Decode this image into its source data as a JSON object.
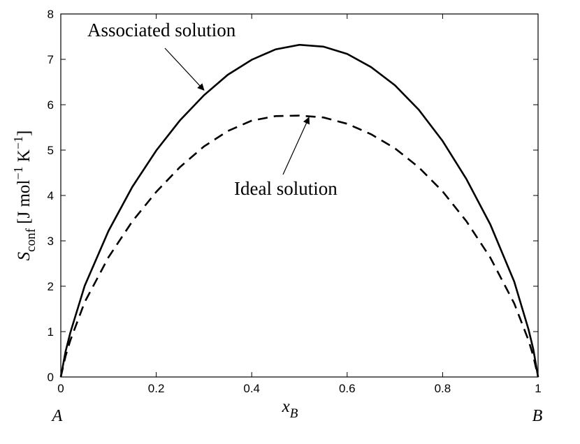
{
  "chart_data": {
    "type": "line",
    "xlabel": {
      "main": "x",
      "sub": "B"
    },
    "ylabel": {
      "main": "S",
      "sub": "conf",
      "unit_open": " [J mol",
      "sup1": "−1",
      "unit_mid": " K",
      "sup2": "−1",
      "unit_close": "]"
    },
    "xlim": [
      0,
      1
    ],
    "ylim": [
      0,
      8
    ],
    "x_ticks": [
      0,
      0.2,
      0.4,
      0.6,
      0.8,
      1
    ],
    "x_tick_labels": [
      "0",
      "0.2",
      "0.4",
      "0.6",
      "0.8",
      "1"
    ],
    "y_ticks": [
      0,
      1,
      2,
      3,
      4,
      5,
      6,
      7,
      8
    ],
    "y_tick_labels": [
      "0",
      "1",
      "2",
      "3",
      "4",
      "5",
      "6",
      "7",
      "8"
    ],
    "grid": false,
    "corner_labels": {
      "left": "A",
      "right": "B"
    },
    "series": [
      {
        "name": "Associated solution",
        "style": "solid",
        "x": [
          0,
          0.01,
          0.02,
          0.05,
          0.1,
          0.15,
          0.2,
          0.25,
          0.3,
          0.35,
          0.4,
          0.45,
          0.5,
          0.55,
          0.6,
          0.65,
          0.7,
          0.75,
          0.8,
          0.85,
          0.9,
          0.95,
          0.98,
          0.99,
          1
        ],
        "y": [
          0,
          0.56,
          0.98,
          2.01,
          3.22,
          4.19,
          4.99,
          5.66,
          6.21,
          6.66,
          6.99,
          7.22,
          7.32,
          7.28,
          7.12,
          6.83,
          6.43,
          5.89,
          5.2,
          4.36,
          3.36,
          2.1,
          1.05,
          0.61,
          0
        ]
      },
      {
        "name": "Ideal solution",
        "style": "dashed",
        "x": [
          0,
          0.01,
          0.02,
          0.05,
          0.1,
          0.15,
          0.2,
          0.25,
          0.3,
          0.35,
          0.4,
          0.45,
          0.5,
          0.55,
          0.6,
          0.65,
          0.7,
          0.75,
          0.8,
          0.85,
          0.9,
          0.95,
          0.98,
          0.99,
          1
        ],
        "y": [
          0,
          0.46,
          0.81,
          1.65,
          2.64,
          3.43,
          4.08,
          4.63,
          5.08,
          5.42,
          5.65,
          5.75,
          5.76,
          5.72,
          5.58,
          5.35,
          5.04,
          4.62,
          4.09,
          3.43,
          2.63,
          1.62,
          0.81,
          0.46,
          0
        ]
      }
    ],
    "annotations": [
      {
        "text": "Associated solution",
        "points_to": {
          "x": 0.3,
          "y": 6.32
        }
      },
      {
        "text": "Ideal solution",
        "points_to": {
          "x": 0.52,
          "y": 5.72
        }
      }
    ]
  }
}
